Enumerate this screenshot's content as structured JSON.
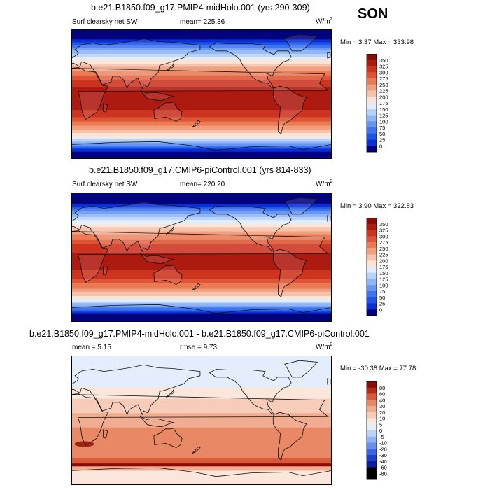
{
  "season": "SON",
  "colors": {
    "sw_palette": [
      "#03037d",
      "#0a2fd6",
      "#1c55ea",
      "#3f74f0",
      "#6695f4",
      "#8fb5f7",
      "#b8d3fb",
      "#e1edfd",
      "#fbe3d6",
      "#f7c2aa",
      "#f1a07f",
      "#ea7b55",
      "#df5434",
      "#cc3420",
      "#ad1a10",
      "#8a0b05"
    ],
    "diff_palette": [
      "#0a1f99",
      "#1f3dcf",
      "#3e64e6",
      "#6a8fef",
      "#94b3f5",
      "#bdd2f9",
      "#e3edfc",
      "#fbe6dc",
      "#f7ccb8",
      "#f1ad91",
      "#e88864",
      "#d85a3a",
      "#b82b19",
      "#8a0c05"
    ]
  },
  "panels": [
    {
      "title": "b.e21.B1850.f09_g17.PMIP4-midHolo.001 (yrs 290-309)",
      "variable": "Surf clearsky net SW",
      "stat": "mean= 225.36",
      "units": "W/m",
      "units_sup": "2",
      "minmax": "Min =  3.37 Max = 333.98",
      "colorbar": {
        "palette": "sw_palette",
        "labels": [
          "350",
          "325",
          "300",
          "275",
          "250",
          "225",
          "200",
          "175",
          "150",
          "125",
          "100",
          "75",
          "50",
          "25",
          "0"
        ]
      },
      "field": {
        "type": "sw",
        "max": 333.98,
        "min": 3.37
      }
    },
    {
      "title": "b.e21.B1850.f09_g17.CMIP6-piControl.001 (yrs 814-833)",
      "variable": "Surf clearsky net SW",
      "stat": "mean= 220.20",
      "units": "W/m",
      "units_sup": "2",
      "minmax": "Min =  3.90 Max = 322.83",
      "colorbar": {
        "palette": "sw_palette",
        "labels": [
          "350",
          "325",
          "300",
          "275",
          "250",
          "225",
          "200",
          "175",
          "150",
          "125",
          "100",
          "75",
          "50",
          "25",
          "0"
        ]
      },
      "field": {
        "type": "sw",
        "max": 322.83,
        "min": 3.9
      }
    },
    {
      "title": "b.e21.B1850.f09_g17.PMIP4-midHolo.001 - b.e21.B1850.f09_g17.CMIP6-piControl.001",
      "variable": "",
      "stat": "mean =   5.15",
      "stat2": "rmse =   9.73",
      "units": "W/m",
      "units_sup": "2",
      "minmax": "Min = -30.38 Max =  77.78",
      "colorbar": {
        "palette": "diff_palette",
        "labels": [
          "80",
          "60",
          "40",
          "30",
          "20",
          "10",
          "5",
          "0",
          "-5",
          "-10",
          "-20",
          "-30",
          "-40",
          "-60",
          "-80"
        ]
      },
      "field": {
        "type": "diff",
        "max": 77.78,
        "min": -30.38
      }
    }
  ]
}
